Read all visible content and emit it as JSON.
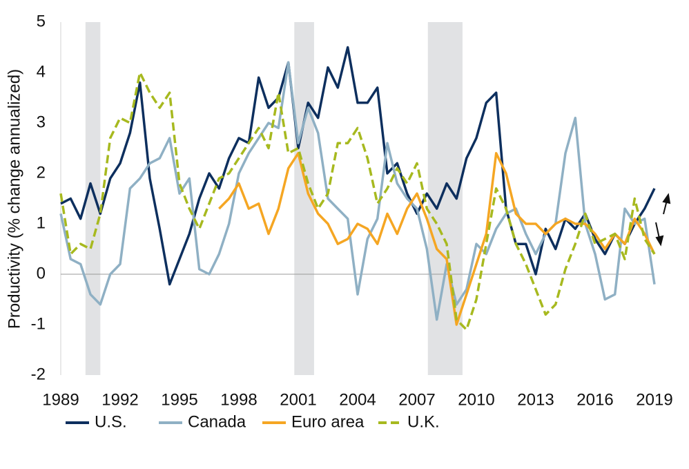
{
  "chart_data": {
    "type": "line",
    "y_label": "Productivity (% change annualized)",
    "xlim": [
      1989,
      2019
    ],
    "ylim": [
      -2,
      5
    ],
    "xticks": [
      1989,
      1992,
      1995,
      1998,
      2001,
      2004,
      2007,
      2010,
      2013,
      2016,
      2019
    ],
    "yticks": [
      -2,
      -1,
      0,
      1,
      2,
      3,
      4,
      5
    ],
    "shaded_periods": [
      [
        1990.25,
        1991.0
      ],
      [
        2000.8,
        2001.8
      ],
      [
        2007.55,
        2009.3
      ]
    ],
    "shade_color": "#e1e2e4",
    "x": [
      1989.0,
      1989.5,
      1990.0,
      1990.5,
      1991.0,
      1991.5,
      1992.0,
      1992.5,
      1993.0,
      1993.5,
      1994.0,
      1994.5,
      1995.0,
      1995.5,
      1996.0,
      1996.5,
      1997.0,
      1997.5,
      1998.0,
      1998.5,
      1999.0,
      1999.5,
      2000.0,
      2000.5,
      2001.0,
      2001.5,
      2002.0,
      2002.5,
      2003.0,
      2003.5,
      2004.0,
      2004.5,
      2005.0,
      2005.5,
      2006.0,
      2006.5,
      2007.0,
      2007.5,
      2008.0,
      2008.5,
      2009.0,
      2009.5,
      2010.0,
      2010.5,
      2011.0,
      2011.5,
      2012.0,
      2012.5,
      2013.0,
      2013.5,
      2014.0,
      2014.5,
      2015.0,
      2015.5,
      2016.0,
      2016.5,
      2017.0,
      2017.5,
      2018.0,
      2018.5,
      2019.0
    ],
    "series": [
      {
        "name": "U.S.",
        "color": "#0d2f5e",
        "dash": false,
        "values": [
          1.4,
          1.5,
          1.1,
          1.8,
          1.2,
          1.9,
          2.2,
          2.8,
          3.8,
          1.9,
          0.9,
          -0.2,
          0.3,
          0.8,
          1.5,
          2.0,
          1.7,
          2.3,
          2.7,
          2.6,
          3.9,
          3.3,
          3.5,
          4.2,
          2.5,
          3.4,
          3.1,
          4.1,
          3.7,
          4.5,
          3.4,
          3.4,
          3.7,
          2.0,
          2.2,
          1.6,
          1.2,
          1.6,
          1.3,
          1.8,
          1.5,
          2.3,
          2.7,
          3.4,
          3.6,
          1.3,
          0.6,
          0.6,
          0.0,
          0.9,
          0.5,
          1.1,
          0.9,
          1.2,
          0.7,
          0.4,
          0.8,
          0.6,
          1.0,
          1.3,
          1.7
        ]
      },
      {
        "name": "Canada",
        "color": "#8fb0c4",
        "dash": false,
        "values": [
          1.2,
          0.3,
          0.2,
          -0.4,
          -0.6,
          0.0,
          0.2,
          1.7,
          1.9,
          2.2,
          2.3,
          2.7,
          1.6,
          1.9,
          0.1,
          0.0,
          0.4,
          1.0,
          2.0,
          2.4,
          2.7,
          3.0,
          2.9,
          4.2,
          2.6,
          3.3,
          2.8,
          1.5,
          1.3,
          1.1,
          -0.4,
          0.7,
          1.1,
          2.6,
          1.8,
          1.5,
          1.3,
          0.5,
          -0.9,
          0.2,
          -0.6,
          -0.3,
          0.6,
          0.4,
          0.9,
          1.2,
          1.3,
          0.8,
          0.4,
          0.8,
          1.0,
          2.4,
          3.1,
          1.0,
          0.4,
          -0.5,
          -0.4,
          1.3,
          1.0,
          1.1,
          -0.2
        ]
      },
      {
        "name": "Euro area",
        "color": "#f5a623",
        "dash": false,
        "values": [
          null,
          null,
          null,
          null,
          null,
          null,
          null,
          null,
          null,
          null,
          null,
          null,
          null,
          null,
          null,
          null,
          1.3,
          1.5,
          1.8,
          1.3,
          1.4,
          0.8,
          1.3,
          2.1,
          2.4,
          1.6,
          1.2,
          1.0,
          0.6,
          0.7,
          1.0,
          0.9,
          0.6,
          1.2,
          0.8,
          1.3,
          1.6,
          1.1,
          0.5,
          0.3,
          -1.0,
          -0.4,
          0.2,
          0.8,
          2.4,
          2.0,
          1.2,
          1.0,
          1.0,
          0.8,
          1.0,
          1.1,
          1.0,
          1.0,
          0.8,
          0.5,
          0.8,
          0.6,
          1.1,
          0.8,
          0.4
        ]
      },
      {
        "name": "U.K.",
        "color": "#a7b91f",
        "dash": true,
        "values": [
          1.6,
          0.4,
          0.6,
          0.5,
          1.2,
          2.7,
          3.1,
          3.0,
          4.0,
          3.6,
          3.3,
          3.6,
          1.8,
          1.3,
          0.9,
          1.4,
          1.9,
          2.0,
          2.3,
          2.6,
          2.9,
          2.5,
          3.6,
          2.4,
          2.5,
          1.8,
          1.3,
          1.6,
          2.6,
          2.6,
          2.9,
          2.3,
          1.4,
          1.7,
          2.1,
          1.8,
          2.2,
          1.3,
          1.0,
          0.6,
          -0.9,
          -1.1,
          -0.5,
          0.6,
          1.7,
          1.3,
          0.6,
          0.2,
          -0.3,
          -0.8,
          -0.6,
          0.1,
          0.6,
          1.2,
          0.6,
          0.7,
          0.8,
          0.3,
          1.5,
          0.7,
          0.4
        ]
      }
    ]
  }
}
